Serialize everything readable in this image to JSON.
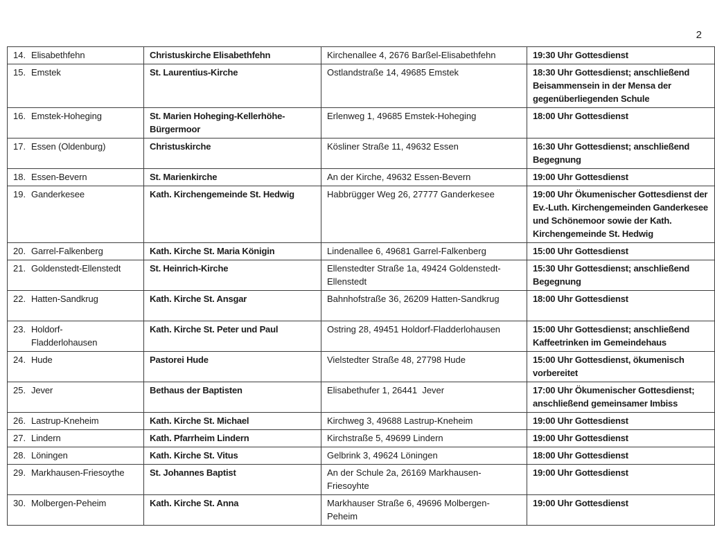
{
  "page": {
    "number": "2"
  },
  "colors": {
    "text": "#1c1c1c",
    "border": "#3d3d3d",
    "background": "#ffffff"
  },
  "table": {
    "rows": [
      {
        "num": "14.",
        "place": "Elisabethfehn",
        "church": "Christuskirche Elisabethfehn",
        "address": "Kirchenallee 4, 2676 Barßel-Elisabethfehn",
        "service": "19:30 Uhr Gottesdienst"
      },
      {
        "num": "15.",
        "place": "Emstek",
        "church": "St. Laurentius-Kirche",
        "address": "Ostlandstraße 14, 49685 Emstek",
        "service": "18:30 Uhr Gottesdienst; anschließend\nBeisammensein in der Mensa der\ngegenüberliegenden Schule"
      },
      {
        "num": "16.",
        "place": "Emstek-Hoheging",
        "church": "St. Marien Hoheging-Kellerhöhe-\nBürgermoor",
        "address": "Erlenweg 1, 49685 Emstek-Hoheging",
        "service": "18:00 Uhr Gottesdienst"
      },
      {
        "num": "17.",
        "place": "Essen (Oldenburg)",
        "church": "Christuskirche",
        "address": "Kösliner Straße 11, 49632 Essen",
        "service": "16:30 Uhr Gottesdienst; anschließend\nBegegnung"
      },
      {
        "num": "18.",
        "place": "Essen-Bevern",
        "church": "St. Marienkirche",
        "address": "An der Kirche, 49632 Essen-Bevern",
        "service": "19:00 Uhr Gottesdienst"
      },
      {
        "num": "19.",
        "place": "Ganderkesee",
        "church": "Kath. Kirchengemeinde St. Hedwig",
        "address": "Habbrügger Weg 26, 27777 Ganderkesee",
        "service": "19:00 Uhr Ökumenischer Gottesdienst der\nEv.-Luth. Kirchengemeinden Ganderkesee\nund Schönemoor sowie der Kath.\nKirchengemeinde St. Hedwig"
      },
      {
        "num": "20.",
        "place": "Garrel-Falkenberg",
        "church": "Kath. Kirche St. Maria Königin",
        "address": "Lindenallee 6, 49681 Garrel-Falkenberg",
        "service": "15:00 Uhr Gottesdienst"
      },
      {
        "num": "21.",
        "place": "Goldenstedt-Ellenstedt",
        "church": "St. Heinrich-Kirche",
        "address": "Ellenstedter Straße 1a, 49424 Goldenstedt-\nEllenstedt",
        "service": "15:30 Uhr Gottesdienst; anschließend\nBegegnung"
      },
      {
        "num": "22.",
        "place": "Hatten-Sandkrug",
        "church": "Kath. Kirche St. Ansgar",
        "address": "Bahnhofstraße 36, 26209 Hatten-Sandkrug",
        "service": "18:00 Uhr Gottesdienst"
      },
      {
        "num": "23.",
        "place": "Holdorf-\nFladderlohausen",
        "church": "Kath. Kirche St. Peter und Paul",
        "address": "Ostring 28, 49451 Holdorf-Fladderlohausen",
        "service": "15:00 Uhr Gottesdienst; anschließend\nKaffeetrinken im Gemeindehaus"
      },
      {
        "num": "24.",
        "place": "Hude",
        "church": "Pastorei Hude",
        "address": "Vielstedter Straße 48, 27798 Hude",
        "service": "15:00 Uhr Gottesdienst, ökumenisch\nvorbereitet"
      },
      {
        "num": "25.",
        "place": "Jever",
        "church": "Bethaus der Baptisten",
        "address": "Elisabethufer 1, 26441  Jever",
        "service": "17:00 Uhr Ökumenischer Gottesdienst;\nanschließend gemeinsamer Imbiss"
      },
      {
        "num": "26.",
        "place": "Lastrup-Kneheim",
        "church": "Kath. Kirche St. Michael",
        "address": "Kirchweg 3, 49688 Lastrup-Kneheim",
        "service": "19:00 Uhr Gottesdienst"
      },
      {
        "num": "27.",
        "place": "Lindern",
        "church": "Kath. Pfarrheim Lindern",
        "address": "Kirchstraße 5, 49699 Lindern",
        "service": "19:00 Uhr Gottesdienst"
      },
      {
        "num": "28.",
        "place": "Löningen",
        "church": "Kath. Kirche St. Vitus",
        "address": "Gelbrink 3, 49624 Löningen",
        "service": "18:00 Uhr Gottesdienst"
      },
      {
        "num": "29.",
        "place": "Markhausen-Friesoythe",
        "church": "St. Johannes Baptist",
        "address": "An der Schule 2a, 26169 Markhausen-\nFriesoyhte",
        "service": "19:00 Uhr Gottesdienst"
      },
      {
        "num": "30.",
        "place": "Molbergen-Peheim",
        "church": "Kath. Kirche St. Anna",
        "address": "Markhauser Straße 6, 49696 Molbergen-\nPeheim",
        "service": "19:00 Uhr Gottesdienst"
      }
    ]
  }
}
